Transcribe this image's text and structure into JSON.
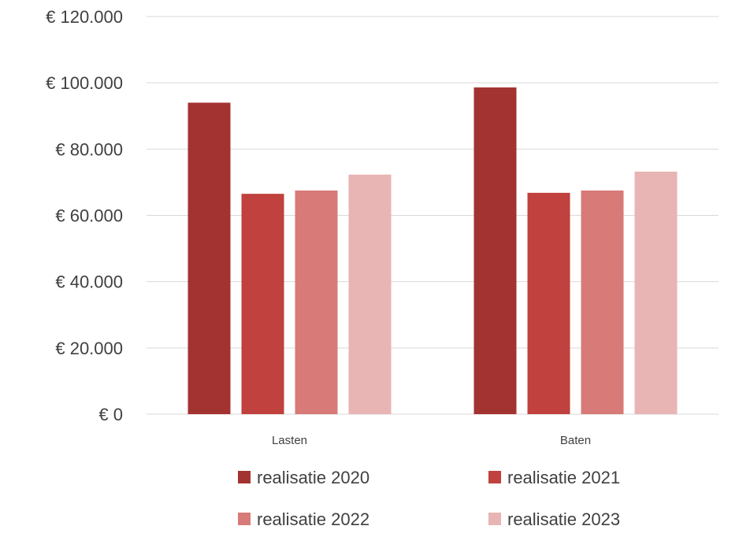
{
  "chart_data": {
    "type": "bar",
    "categories": [
      "Lasten",
      "Baten"
    ],
    "series": [
      {
        "name": "realisatie 2020",
        "values": [
          94000,
          98600
        ],
        "color": "#A33331"
      },
      {
        "name": "realisatie 2021",
        "values": [
          66500,
          66800
        ],
        "color": "#C0413D"
      },
      {
        "name": "realisatie 2022",
        "values": [
          67500,
          67500
        ],
        "color": "#D87A77"
      },
      {
        "name": "realisatie 2023",
        "values": [
          72300,
          73200
        ],
        "color": "#E8B5B4"
      }
    ],
    "ylim": [
      0,
      120000
    ],
    "yticks": [
      0,
      20000,
      40000,
      60000,
      80000,
      100000,
      120000
    ],
    "ytick_labels": [
      "€ 0",
      "€ 20.000",
      "€ 40.000",
      "€ 60.000",
      "€ 80.000",
      "€ 100.000",
      "€ 120.000"
    ],
    "title": "",
    "xlabel": "",
    "ylabel": "",
    "grid": true,
    "legend_position": "bottom"
  }
}
